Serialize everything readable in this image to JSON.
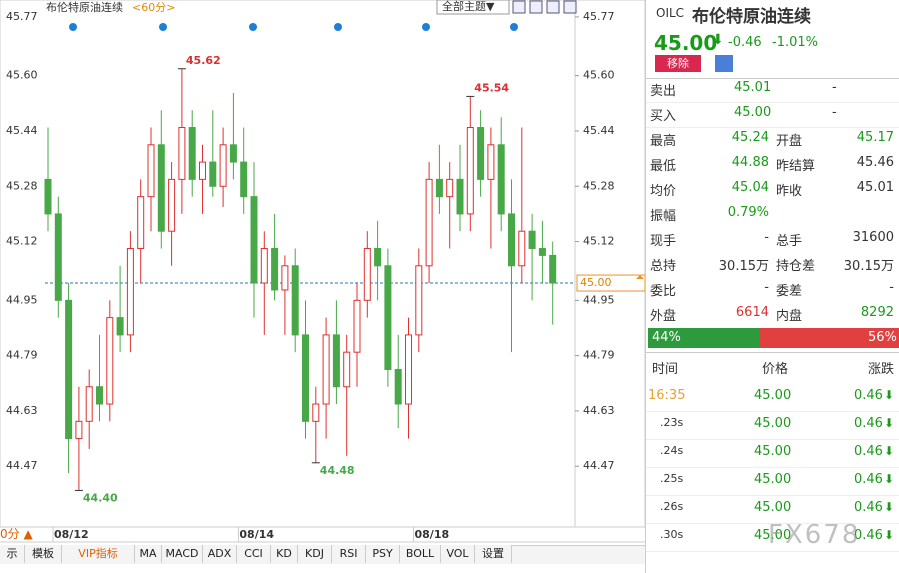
{
  "chart_data": {
    "type": "candlestick",
    "title": "布伦特原油连续",
    "period": "<60分>",
    "theme_button": "全部主题▼",
    "categories": [
      "08/12",
      null,
      null,
      null,
      null,
      null,
      null,
      null,
      null,
      null,
      null,
      null,
      null,
      null,
      null,
      null,
      null,
      null,
      "08/14",
      null,
      null,
      null,
      null,
      null,
      null,
      null,
      null,
      null,
      null,
      null,
      null,
      null,
      null,
      null,
      null,
      "08/18",
      null,
      null,
      null,
      null,
      null,
      null,
      null,
      null,
      null,
      null,
      null,
      null,
      null,
      null
    ],
    "series": [
      {
        "name": "OILC",
        "up_color": "#e03030",
        "down_color": "#48a848",
        "values": [
          [
            45.3,
            45.45,
            45.15,
            45.2
          ],
          [
            45.2,
            45.25,
            44.9,
            44.95
          ],
          [
            44.95,
            45.0,
            44.45,
            44.55
          ],
          [
            44.55,
            44.7,
            44.4,
            44.6
          ],
          [
            44.6,
            44.75,
            44.52,
            44.7
          ],
          [
            44.7,
            44.85,
            44.6,
            44.65
          ],
          [
            44.65,
            44.95,
            44.6,
            44.9
          ],
          [
            44.9,
            45.05,
            44.8,
            44.85
          ],
          [
            44.85,
            45.15,
            44.8,
            45.1
          ],
          [
            45.1,
            45.3,
            45.0,
            45.25
          ],
          [
            45.25,
            45.45,
            45.15,
            45.4
          ],
          [
            45.4,
            45.5,
            45.1,
            45.15
          ],
          [
            45.15,
            45.35,
            45.05,
            45.3
          ],
          [
            45.3,
            45.62,
            45.2,
            45.45
          ],
          [
            45.45,
            45.5,
            45.25,
            45.3
          ],
          [
            45.3,
            45.4,
            45.2,
            45.35
          ],
          [
            45.35,
            45.5,
            45.25,
            45.28
          ],
          [
            45.28,
            45.45,
            45.22,
            45.4
          ],
          [
            45.4,
            45.55,
            45.3,
            45.35
          ],
          [
            45.35,
            45.45,
            45.2,
            45.25
          ],
          [
            45.25,
            45.35,
            44.9,
            45.0
          ],
          [
            45.0,
            45.15,
            44.85,
            45.1
          ],
          [
            45.1,
            45.2,
            44.95,
            44.98
          ],
          [
            44.98,
            45.08,
            44.85,
            45.05
          ],
          [
            45.05,
            45.1,
            44.8,
            44.85
          ],
          [
            44.85,
            44.95,
            44.55,
            44.6
          ],
          [
            44.6,
            44.7,
            44.48,
            44.65
          ],
          [
            44.65,
            44.9,
            44.55,
            44.85
          ],
          [
            44.85,
            44.95,
            44.65,
            44.7
          ],
          [
            44.7,
            44.85,
            44.5,
            44.8
          ],
          [
            44.8,
            45.0,
            44.7,
            44.95
          ],
          [
            44.95,
            45.15,
            44.9,
            45.1
          ],
          [
            45.1,
            45.18,
            44.95,
            45.05
          ],
          [
            45.05,
            45.1,
            44.7,
            44.75
          ],
          [
            44.75,
            44.85,
            44.58,
            44.65
          ],
          [
            44.65,
            44.9,
            44.55,
            44.85
          ],
          [
            44.85,
            45.1,
            44.8,
            45.05
          ],
          [
            45.05,
            45.35,
            45.0,
            45.3
          ],
          [
            45.3,
            45.4,
            45.2,
            45.25
          ],
          [
            45.25,
            45.35,
            45.1,
            45.3
          ],
          [
            45.3,
            45.4,
            45.15,
            45.2
          ],
          [
            45.2,
            45.54,
            45.15,
            45.45
          ],
          [
            45.45,
            45.5,
            45.25,
            45.3
          ],
          [
            45.3,
            45.45,
            45.1,
            45.4
          ],
          [
            45.4,
            45.48,
            45.15,
            45.2
          ],
          [
            45.2,
            45.3,
            44.8,
            45.05
          ],
          [
            45.05,
            45.45,
            45.0,
            45.15
          ],
          [
            45.15,
            45.2,
            44.95,
            45.1
          ],
          [
            45.1,
            45.18,
            45.0,
            45.08
          ],
          [
            45.08,
            45.12,
            44.88,
            45.0
          ]
        ]
      }
    ],
    "ylim": [
      44.3,
      45.79
    ],
    "yticks": [
      45.77,
      {
        "value": 45.6,
        "label": "45.60"
      },
      45.44,
      45.28,
      45.12,
      44.95,
      44.79,
      44.63,
      44.47
    ],
    "last_price": {
      "value": 45,
      "label": "45.00"
    },
    "annotations": [
      {
        "value": 45.62,
        "label": "45.62",
        "kind": "high"
      },
      {
        "value": 44.4,
        "label": "44.40",
        "kind": "low"
      },
      {
        "value": 45.54,
        "label": "45.54",
        "kind": "high"
      },
      {
        "value": 44.48,
        "label": "44.48",
        "kind": "low"
      }
    ]
  },
  "toolbar": {
    "period": "0分 ▲",
    "tabs": [
      "示",
      "模板",
      "VIP指标",
      "MA",
      "MACD",
      "ADX",
      "CCI",
      "KD",
      "KDJ",
      "RSI",
      "PSY",
      "BOLL",
      "VOL",
      "设置"
    ]
  },
  "quote": {
    "code": "OILC",
    "name": "布伦特原油连续",
    "price": "45.00",
    "arrow": "⬇",
    "change": "-0.46",
    "change_pct": "-1.01%",
    "remove": "移除",
    "book": [
      [
        "卖出",
        "45.01",
        "-"
      ],
      [
        "买入",
        "45.00",
        "-"
      ]
    ],
    "stats": [
      [
        "最高",
        "45.24",
        "开盘",
        "45.17"
      ],
      [
        "最低",
        "44.88",
        "昨结算",
        "45.46"
      ],
      [
        "均价",
        "45.04",
        "昨收",
        "45.01"
      ],
      [
        "振幅",
        "0.79%"
      ],
      [
        "现手",
        "-",
        "总手",
        "31600"
      ],
      [
        "总持",
        "30.15万",
        "持仓差",
        "30.15万"
      ],
      [
        "委比",
        "-",
        "委差",
        "-"
      ],
      [
        "外盘",
        "6614",
        "内盘",
        "8292"
      ]
    ],
    "ratio": {
      "values": [
        44,
        56
      ],
      "value_labels": [
        "44%",
        "56%"
      ]
    },
    "trades_header": [
      "时间",
      "价格",
      "涨跌"
    ],
    "trades": [
      [
        "16:35",
        "45.00",
        "0.46"
      ],
      [
        ".23s",
        "45.00",
        "0.46"
      ],
      [
        ".24s",
        "45.00",
        "0.46"
      ],
      [
        ".25s",
        "45.00",
        "0.46"
      ],
      [
        ".26s",
        "45.00",
        "0.46"
      ],
      [
        ".30s",
        "45.00",
        "0.46"
      ]
    ],
    "watermark": "FX678"
  }
}
